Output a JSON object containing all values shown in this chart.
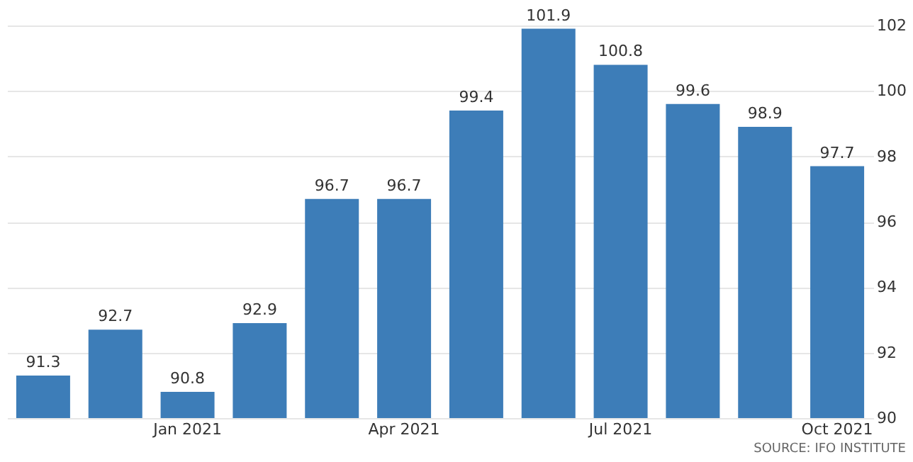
{
  "chart_data": {
    "type": "bar",
    "categories": [
      null,
      null,
      "Jan 2021",
      null,
      null,
      "Apr 2021",
      null,
      null,
      "Jul 2021",
      null,
      null,
      "Oct 2021"
    ],
    "values": [
      91.3,
      92.7,
      90.8,
      92.9,
      96.7,
      96.7,
      99.4,
      101.9,
      100.8,
      99.6,
      98.9,
      97.7
    ],
    "color": "#3d7db8",
    "ylim": [
      90,
      102
    ],
    "yticks": [
      90,
      92,
      94,
      96,
      98,
      100,
      102
    ],
    "grid": "y",
    "data_labels": true,
    "annotations": [
      "SOURCE: IFO INSTITUTE"
    ]
  }
}
